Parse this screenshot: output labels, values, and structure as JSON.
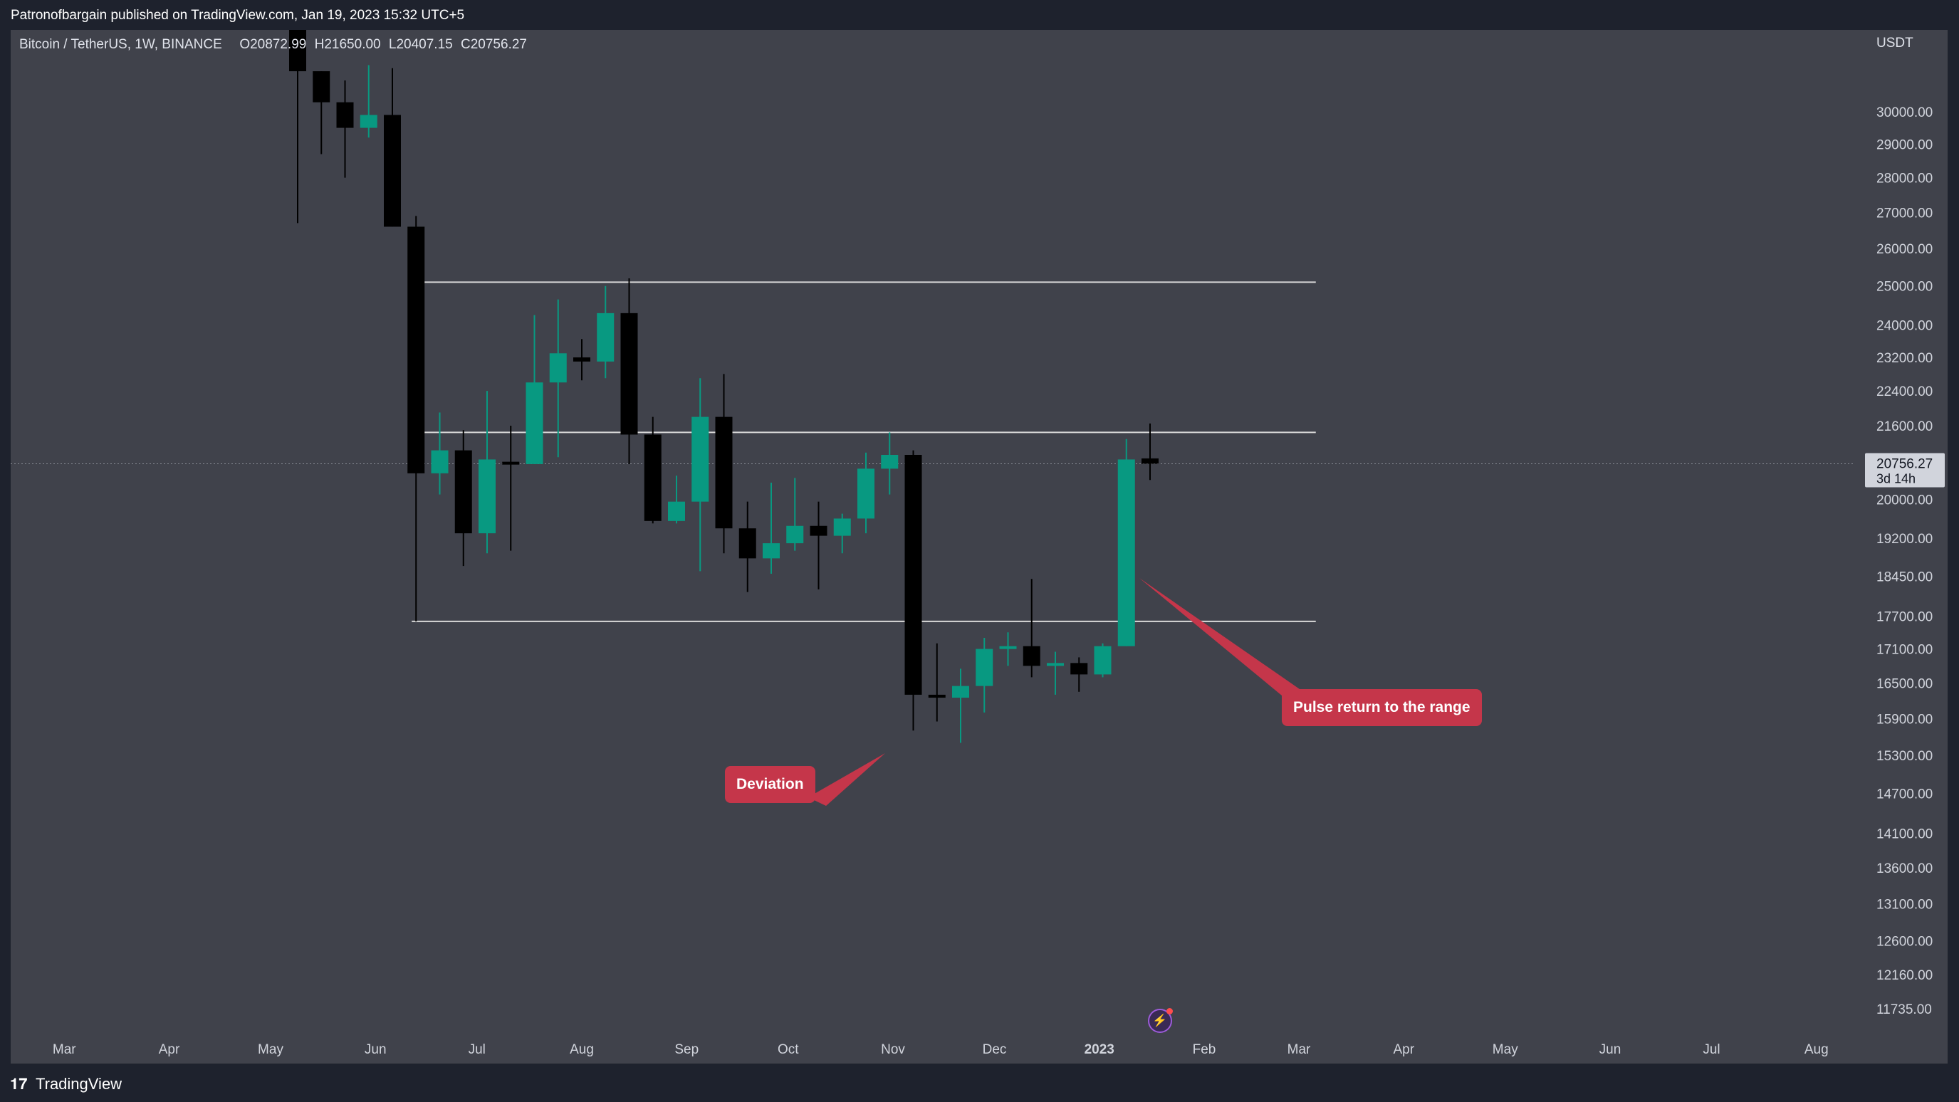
{
  "header": {
    "published": "Patronofbargain published on TradingView.com, Jan 19, 2023 15:32 UTC+5"
  },
  "legend": {
    "symbol": "Bitcoin / TetherUS, 1W, BINANCE",
    "o_label": "O",
    "o_value": "20872.99",
    "h_label": "H",
    "h_value": "21650.00",
    "l_label": "L",
    "l_value": "20407.15",
    "c_label": "C",
    "c_value": "20756.27"
  },
  "price_axis": {
    "currency": "USDT",
    "current_price": "20756.27",
    "countdown": "3d 14h",
    "ticks": [
      "30000.00",
      "29000.00",
      "28000.00",
      "27000.00",
      "26000.00",
      "25000.00",
      "24000.00",
      "23200.00",
      "22400.00",
      "21600.00",
      "20000.00",
      "19200.00",
      "18450.00",
      "17700.00",
      "17100.00",
      "16500.00",
      "15900.00",
      "15300.00",
      "14700.00",
      "14100.00",
      "13600.00",
      "13100.00",
      "12600.00",
      "12160.00",
      "11735.00"
    ]
  },
  "annotations": {
    "deviation": "Deviation",
    "pulse": "Pulse return to the range"
  },
  "footer": {
    "brand": "TradingView"
  },
  "colors": {
    "bull": "#089981",
    "bear": "#000000",
    "callout": "#c5364a",
    "background": "#40424b"
  },
  "chart_data": {
    "type": "candlestick",
    "ylim": [
      11735,
      30000
    ],
    "y_scale": "log",
    "x_ticks": [
      {
        "label": "Mar",
        "bold": false
      },
      {
        "label": "Apr",
        "bold": false
      },
      {
        "label": "May",
        "bold": false
      },
      {
        "label": "Jun",
        "bold": false
      },
      {
        "label": "Jul",
        "bold": false
      },
      {
        "label": "Aug",
        "bold": false
      },
      {
        "label": "Sep",
        "bold": false
      },
      {
        "label": "Oct",
        "bold": false
      },
      {
        "label": "Nov",
        "bold": false
      },
      {
        "label": "Dec",
        "bold": false
      },
      {
        "label": "2023",
        "bold": true
      },
      {
        "label": "Feb",
        "bold": false
      },
      {
        "label": "Mar",
        "bold": false
      },
      {
        "label": "Apr",
        "bold": false
      },
      {
        "label": "May",
        "bold": false
      },
      {
        "label": "Jun",
        "bold": false
      },
      {
        "label": "Jul",
        "bold": false
      },
      {
        "label": "Aug",
        "bold": false
      }
    ],
    "candles": [
      {
        "week": "2022-05-09",
        "open": 34000,
        "high": 34500,
        "low": 26700,
        "close": 31300
      },
      {
        "week": "2022-05-16",
        "open": 31300,
        "high": 31300,
        "low": 28700,
        "close": 30300
      },
      {
        "week": "2022-05-23",
        "open": 30300,
        "high": 31000,
        "low": 28000,
        "close": 29500
      },
      {
        "week": "2022-05-30",
        "open": 29500,
        "high": 31500,
        "low": 29200,
        "close": 29900
      },
      {
        "week": "2022-06-06",
        "open": 29900,
        "high": 31400,
        "low": 26600,
        "close": 26600
      },
      {
        "week": "2022-06-13",
        "open": 26600,
        "high": 26900,
        "low": 17600,
        "close": 20550
      },
      {
        "week": "2022-06-20",
        "open": 20550,
        "high": 21900,
        "low": 20100,
        "close": 21050
      },
      {
        "week": "2022-06-27",
        "open": 21050,
        "high": 21500,
        "low": 18650,
        "close": 19300
      },
      {
        "week": "2022-07-04",
        "open": 19300,
        "high": 22400,
        "low": 18900,
        "close": 20850
      },
      {
        "week": "2022-07-11",
        "open": 20800,
        "high": 21600,
        "low": 18950,
        "close": 20750
      },
      {
        "week": "2022-07-18",
        "open": 20750,
        "high": 24250,
        "low": 20750,
        "close": 22600
      },
      {
        "week": "2022-07-25",
        "open": 22600,
        "high": 24650,
        "low": 20900,
        "close": 23300
      },
      {
        "week": "2022-08-01",
        "open": 23200,
        "high": 23650,
        "low": 22650,
        "close": 23100
      },
      {
        "week": "2022-08-08",
        "open": 23100,
        "high": 25000,
        "low": 22700,
        "close": 24300
      },
      {
        "week": "2022-08-15",
        "open": 24300,
        "high": 25200,
        "low": 20750,
        "close": 21400
      },
      {
        "week": "2022-08-22",
        "open": 21400,
        "high": 21800,
        "low": 19500,
        "close": 19550
      },
      {
        "week": "2022-08-29",
        "open": 19550,
        "high": 20500,
        "low": 19500,
        "close": 19950
      },
      {
        "week": "2022-09-05",
        "open": 19950,
        "high": 22700,
        "low": 18550,
        "close": 21800
      },
      {
        "week": "2022-09-12",
        "open": 21800,
        "high": 22800,
        "low": 18900,
        "close": 19400
      },
      {
        "week": "2022-09-19",
        "open": 19400,
        "high": 19950,
        "low": 18150,
        "close": 18800
      },
      {
        "week": "2022-09-26",
        "open": 18800,
        "high": 20350,
        "low": 18500,
        "close": 19100
      },
      {
        "week": "2022-10-03",
        "open": 19100,
        "high": 20450,
        "low": 18950,
        "close": 19450
      },
      {
        "week": "2022-10-10",
        "open": 19450,
        "high": 19950,
        "low": 18200,
        "close": 19250
      },
      {
        "week": "2022-10-17",
        "open": 19250,
        "high": 19700,
        "low": 18900,
        "close": 19600
      },
      {
        "week": "2022-10-24",
        "open": 19600,
        "high": 21000,
        "low": 19300,
        "close": 20650
      },
      {
        "week": "2022-10-31",
        "open": 20650,
        "high": 21450,
        "low": 20100,
        "close": 20950
      },
      {
        "week": "2022-11-07",
        "open": 20950,
        "high": 21050,
        "low": 15700,
        "close": 16300
      },
      {
        "week": "2022-11-14",
        "open": 16300,
        "high": 17200,
        "low": 15850,
        "close": 16250
      },
      {
        "week": "2022-11-21",
        "open": 16250,
        "high": 16750,
        "low": 15500,
        "close": 16450
      },
      {
        "week": "2022-11-28",
        "open": 16450,
        "high": 17300,
        "low": 16000,
        "close": 17100
      },
      {
        "week": "2022-12-05",
        "open": 17100,
        "high": 17400,
        "low": 16800,
        "close": 17150
      },
      {
        "week": "2022-12-12",
        "open": 17150,
        "high": 18400,
        "low": 16600,
        "close": 16800
      },
      {
        "week": "2022-12-19",
        "open": 16800,
        "high": 17050,
        "low": 16300,
        "close": 16850
      },
      {
        "week": "2022-12-26",
        "open": 16850,
        "high": 16950,
        "low": 16350,
        "close": 16650
      },
      {
        "week": "2023-01-02",
        "open": 16650,
        "high": 17200,
        "low": 16600,
        "close": 17150
      },
      {
        "week": "2023-01-09",
        "open": 17150,
        "high": 21300,
        "low": 17150,
        "close": 20850
      },
      {
        "week": "2023-01-16",
        "open": 20872.99,
        "high": 21650.0,
        "low": 20407.15,
        "close": 20756.27
      }
    ],
    "levels": [
      {
        "price": 25100,
        "from": "2022-06-13",
        "to": "2023-03-06"
      },
      {
        "price": 21450,
        "from": "2022-06-13",
        "to": "2023-03-06"
      },
      {
        "price": 17600,
        "from": "2022-06-13",
        "to": "2023-03-06"
      }
    ]
  }
}
